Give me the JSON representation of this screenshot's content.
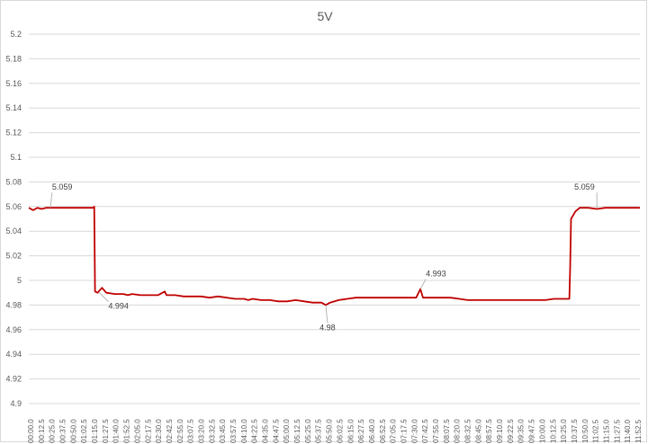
{
  "chart_data": {
    "type": "line",
    "title": "5V",
    "xlabel": "",
    "ylabel": "",
    "ylim": [
      4.9,
      5.2
    ],
    "ytick_step": 0.02,
    "yticks": [
      "4.9",
      "4.92",
      "4.94",
      "4.96",
      "4.98",
      "5",
      "5.02",
      "5.04",
      "5.06",
      "5.08",
      "5.1",
      "5.12",
      "5.14",
      "5.16",
      "5.18",
      "5.2"
    ],
    "grid": true,
    "legend": "none",
    "line_color": "#c00000",
    "x_tick_labels": [
      "00:00.0",
      "00:12.5",
      "00:25.0",
      "00:37.5",
      "00:50.0",
      "01:02.5",
      "01:15.0",
      "01:27.5",
      "01:40.0",
      "01:52.5",
      "02:05.0",
      "02:17.5",
      "02:30.0",
      "02:42.5",
      "02:55.0",
      "03:07.5",
      "03:20.0",
      "03:32.5",
      "03:45.0",
      "03:57.5",
      "04:10.0",
      "04:22.5",
      "04:35.0",
      "04:47.5",
      "05:00.0",
      "05:12.5",
      "05:25.0",
      "05:37.5",
      "05:50.0",
      "06:02.5",
      "06:15.0",
      "06:27.5",
      "06:40.0",
      "06:52.5",
      "07:05.0",
      "07:17.5",
      "07:30.0",
      "07:42.5",
      "07:55.0",
      "08:07.5",
      "08:20.0",
      "08:32.5",
      "08:45.0",
      "08:57.5",
      "09:10.0",
      "09:22.5",
      "09:35.0",
      "09:47.5",
      "10:00.0",
      "10:12.5",
      "10:25.0",
      "10:37.5",
      "10:50.0",
      "11:02.5",
      "11:15.0",
      "11:27.5",
      "11:40.0",
      "11:52.5"
    ],
    "x_seconds_range": [
      0,
      710
    ],
    "series": [
      {
        "values": [
          [
            0,
            5.059
          ],
          [
            5,
            5.057
          ],
          [
            10,
            5.059
          ],
          [
            15,
            5.058
          ],
          [
            20,
            5.059
          ],
          [
            30,
            5.059
          ],
          [
            45,
            5.059
          ],
          [
            60,
            5.059
          ],
          [
            70,
            5.059
          ],
          [
            75,
            5.059
          ],
          [
            76,
            5.06
          ],
          [
            77,
            4.991
          ],
          [
            80,
            4.99
          ],
          [
            85,
            4.994
          ],
          [
            90,
            4.99
          ],
          [
            100,
            4.989
          ],
          [
            110,
            4.989
          ],
          [
            115,
            4.988
          ],
          [
            120,
            4.989
          ],
          [
            130,
            4.988
          ],
          [
            140,
            4.988
          ],
          [
            150,
            4.988
          ],
          [
            158,
            4.991
          ],
          [
            160,
            4.988
          ],
          [
            170,
            4.988
          ],
          [
            180,
            4.987
          ],
          [
            190,
            4.987
          ],
          [
            200,
            4.987
          ],
          [
            210,
            4.986
          ],
          [
            220,
            4.987
          ],
          [
            230,
            4.986
          ],
          [
            240,
            4.985
          ],
          [
            250,
            4.985
          ],
          [
            255,
            4.984
          ],
          [
            260,
            4.985
          ],
          [
            270,
            4.984
          ],
          [
            280,
            4.984
          ],
          [
            290,
            4.983
          ],
          [
            300,
            4.983
          ],
          [
            310,
            4.984
          ],
          [
            320,
            4.983
          ],
          [
            330,
            4.982
          ],
          [
            340,
            4.982
          ],
          [
            345,
            4.98
          ],
          [
            350,
            4.982
          ],
          [
            360,
            4.984
          ],
          [
            370,
            4.985
          ],
          [
            380,
            4.986
          ],
          [
            390,
            4.986
          ],
          [
            400,
            4.986
          ],
          [
            410,
            4.986
          ],
          [
            420,
            4.986
          ],
          [
            430,
            4.986
          ],
          [
            440,
            4.986
          ],
          [
            450,
            4.986
          ],
          [
            455,
            4.993
          ],
          [
            458,
            4.986
          ],
          [
            470,
            4.986
          ],
          [
            480,
            4.986
          ],
          [
            490,
            4.986
          ],
          [
            500,
            4.985
          ],
          [
            510,
            4.984
          ],
          [
            520,
            4.984
          ],
          [
            530,
            4.984
          ],
          [
            540,
            4.984
          ],
          [
            550,
            4.984
          ],
          [
            560,
            4.984
          ],
          [
            570,
            4.984
          ],
          [
            580,
            4.984
          ],
          [
            590,
            4.984
          ],
          [
            600,
            4.984
          ],
          [
            610,
            4.985
          ],
          [
            620,
            4.985
          ],
          [
            628,
            4.985
          ],
          [
            629,
            5.01
          ],
          [
            630,
            5.05
          ],
          [
            635,
            5.056
          ],
          [
            640,
            5.059
          ],
          [
            650,
            5.059
          ],
          [
            660,
            5.058
          ],
          [
            670,
            5.059
          ],
          [
            680,
            5.059
          ],
          [
            690,
            5.059
          ],
          [
            700,
            5.059
          ],
          [
            710,
            5.059
          ]
        ]
      }
    ],
    "annotations": [
      {
        "text": "5.059",
        "x": 25,
        "y": 5.059
      },
      {
        "text": "4.994",
        "x": 82,
        "y": 4.99
      },
      {
        "text": "4.98",
        "x": 345,
        "y": 4.98
      },
      {
        "text": "4.993",
        "x": 455,
        "y": 4.993
      },
      {
        "text": "5.059",
        "x": 660,
        "y": 5.059
      }
    ]
  }
}
